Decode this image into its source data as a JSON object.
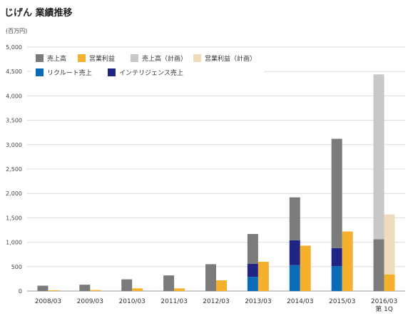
{
  "chart_data": {
    "type": "bar",
    "title": "じげん 業績推移",
    "unit_label": "(百万円)",
    "ylim": [
      0,
      5000
    ],
    "yticks": [
      "0",
      "500",
      "1,000",
      "1,500",
      "2,000",
      "2,500",
      "3,000",
      "3,500",
      "4,000",
      "4,500",
      "5,000"
    ],
    "categories": [
      [
        "2008/03"
      ],
      [
        "2009/03"
      ],
      [
        "2010/03"
      ],
      [
        "2011/03"
      ],
      [
        "2012/03"
      ],
      [
        "2013/03"
      ],
      [
        "2014/03"
      ],
      [
        "2015/03"
      ],
      [
        "2016/03",
        "第 1Q"
      ]
    ],
    "legend": [
      {
        "name": "売上高",
        "color": "#7b7b7b"
      },
      {
        "name": "営業利益",
        "color": "#f5b12e"
      },
      {
        "name": "売上高（計画）",
        "color": "#c8c8c8"
      },
      {
        "name": "営業利益（計画）",
        "color": "#efdcbc"
      },
      {
        "name": "リクルート売上",
        "color": "#0a6cb6"
      },
      {
        "name": "インテリジェンス売上",
        "color": "#1f2485"
      }
    ],
    "series": [
      {
        "name": "売上高",
        "values": [
          110,
          130,
          240,
          320,
          550,
          1170,
          1920,
          3120,
          1060
        ]
      },
      {
        "name": "リクルート売上",
        "values": [
          0,
          0,
          0,
          0,
          0,
          290,
          530,
          510,
          0
        ]
      },
      {
        "name": "インテリジェンス売上",
        "values": [
          0,
          0,
          0,
          0,
          0,
          270,
          510,
          370,
          0
        ]
      },
      {
        "name": "売上高（計画）",
        "values": [
          0,
          0,
          0,
          0,
          0,
          0,
          0,
          0,
          4440
        ]
      },
      {
        "name": "営業利益",
        "values": [
          15,
          20,
          55,
          55,
          220,
          600,
          930,
          1220,
          340
        ]
      },
      {
        "name": "営業利益（計画）",
        "values": [
          0,
          0,
          0,
          0,
          0,
          0,
          0,
          0,
          1570
        ]
      }
    ]
  }
}
